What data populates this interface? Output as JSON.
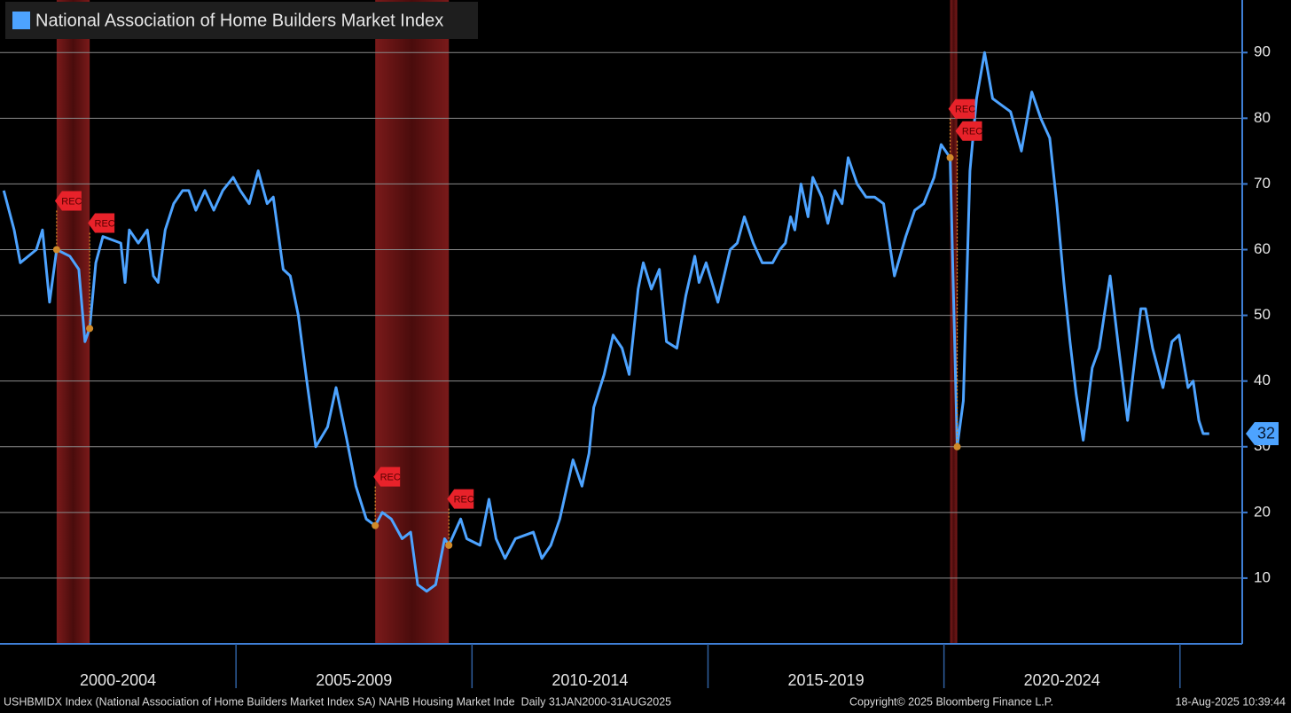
{
  "chart_data": {
    "type": "line",
    "legend_corner": "top-left",
    "grid": true,
    "x": [
      2000.08,
      2000.3,
      2000.43,
      2000.77,
      2000.9,
      2001.05,
      2001.2,
      2001.48,
      2001.67,
      2001.8,
      2001.9,
      2002.03,
      2002.18,
      2002.56,
      2002.65,
      2002.74,
      2002.93,
      2003.12,
      2003.25,
      2003.35,
      2003.5,
      2003.68,
      2003.87,
      2004.0,
      2004.15,
      2004.34,
      2004.53,
      2004.72,
      2004.94,
      2005.09,
      2005.28,
      2005.47,
      2005.66,
      2005.79,
      2006.0,
      2006.15,
      2006.32,
      2006.5,
      2006.69,
      2006.94,
      2007.12,
      2007.35,
      2007.54,
      2007.76,
      2007.95,
      2008.1,
      2008.29,
      2008.52,
      2008.7,
      2008.85,
      2009.04,
      2009.23,
      2009.42,
      2009.51,
      2009.76,
      2009.89,
      2010.17,
      2010.36,
      2010.51,
      2010.7,
      2010.92,
      2011.3,
      2011.48,
      2011.67,
      2011.86,
      2012.14,
      2012.33,
      2012.48,
      2012.58,
      2012.8,
      2012.99,
      2013.18,
      2013.33,
      2013.52,
      2013.63,
      2013.8,
      2013.97,
      2014.12,
      2014.34,
      2014.53,
      2014.72,
      2014.81,
      2014.96,
      2015.21,
      2015.34,
      2015.47,
      2015.62,
      2015.77,
      2015.96,
      2016.15,
      2016.37,
      2016.52,
      2016.64,
      2016.75,
      2016.84,
      2016.97,
      2017.12,
      2017.22,
      2017.41,
      2017.54,
      2017.69,
      2017.84,
      2017.97,
      2018.16,
      2018.35,
      2018.53,
      2018.72,
      2018.95,
      2019.19,
      2019.38,
      2019.57,
      2019.79,
      2019.94,
      2020.13,
      2020.28,
      2020.41,
      2020.55,
      2020.69,
      2020.86,
      2021.03,
      2021.22,
      2021.41,
      2021.64,
      2021.86,
      2022.05,
      2022.24,
      2022.39,
      2022.54,
      2022.67,
      2022.8,
      2022.95,
      2023.14,
      2023.29,
      2023.52,
      2023.7,
      2023.89,
      2024.17,
      2024.27,
      2024.42,
      2024.64,
      2024.83,
      2024.98,
      2025.17,
      2025.28,
      2025.4,
      2025.49,
      2025.62
    ],
    "series": [
      {
        "name": "National Association of Home Builders Market Index",
        "color": "#4da3ff",
        "values": [
          69,
          63,
          58,
          60,
          63,
          52,
          60,
          59,
          57,
          46,
          48,
          58,
          62,
          61,
          55,
          63,
          61,
          63,
          56,
          55,
          63,
          67,
          69,
          69,
          66,
          69,
          66,
          69,
          71,
          69,
          67,
          72,
          67,
          68,
          57,
          56,
          50,
          40,
          30,
          33,
          39,
          31,
          24,
          19,
          18,
          20,
          19,
          16,
          17,
          9,
          8,
          9,
          16,
          15,
          19,
          16,
          15,
          22,
          16,
          13,
          16,
          17,
          13,
          15,
          19,
          28,
          24,
          29,
          36,
          41,
          47,
          45,
          41,
          54,
          58,
          54,
          57,
          46,
          45,
          53,
          59,
          55,
          58,
          52,
          56,
          60,
          61,
          65,
          61,
          58,
          58,
          60,
          61,
          65,
          63,
          70,
          65,
          71,
          68,
          64,
          69,
          67,
          74,
          70,
          68,
          68,
          67,
          56,
          62,
          66,
          67,
          71,
          76,
          74,
          30,
          37,
          72,
          83,
          90,
          83,
          82,
          81,
          75,
          84,
          80,
          77,
          67,
          55,
          46,
          38,
          31,
          42,
          45,
          56,
          45,
          34,
          51,
          51,
          45,
          39,
          46,
          47,
          39,
          40,
          34,
          32,
          32
        ]
      }
    ],
    "xlim": [
      2000,
      2026.3
    ],
    "ylim": [
      0,
      98
    ],
    "yticks": [
      10,
      20,
      30,
      40,
      50,
      60,
      70,
      80,
      90
    ],
    "periods": [
      {
        "label": "2000-2004",
        "start": 2000,
        "end": 2005
      },
      {
        "label": "2005-2009",
        "start": 2005,
        "end": 2010
      },
      {
        "label": "2010-2014",
        "start": 2010,
        "end": 2015
      },
      {
        "label": "2015-2019",
        "start": 2015,
        "end": 2020
      },
      {
        "label": "2020-2024",
        "start": 2020,
        "end": 2025
      }
    ],
    "recessions": [
      {
        "start": 2001.2,
        "end": 2001.9
      },
      {
        "start": 2007.95,
        "end": 2009.51
      },
      {
        "start": 2020.13,
        "end": 2020.28
      }
    ],
    "annotations": [
      {
        "label": "REC",
        "x": 2001.2,
        "y": 60
      },
      {
        "label": "REC",
        "x": 2001.9,
        "y": 48
      },
      {
        "label": "REC",
        "x": 2007.95,
        "y": 18
      },
      {
        "label": "REC",
        "x": 2009.51,
        "y": 15
      },
      {
        "label": "REC",
        "x": 2020.13,
        "y": 74
      },
      {
        "label": "REC",
        "x": 2020.28,
        "y": 30
      }
    ],
    "footer": {
      "source": "USHBMIDX Index (National Association of Home Builders Market Index SA) NAHB Housing Market Inde  Daily 31JAN2000-31AUG2025",
      "copyright": "Copyright© 2025 Bloomberg Finance L.P.",
      "timestamp": "18-Aug-2025 10:39:44"
    }
  }
}
